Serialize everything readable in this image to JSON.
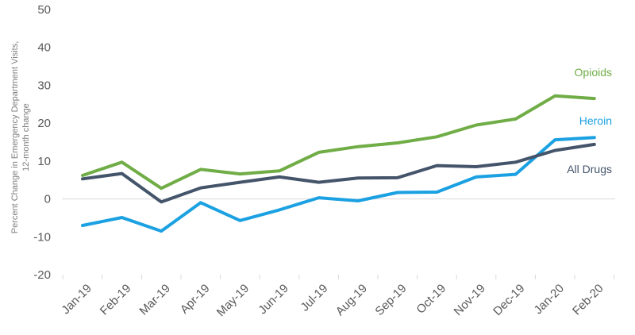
{
  "chart_data": {
    "type": "line",
    "title": "",
    "ylabel_lines": [
      "Percent Change in Emergency Department Visits,",
      "12-month change"
    ],
    "xlabel": "",
    "ylim": [
      -20,
      50
    ],
    "yticks": [
      -20,
      -10,
      0,
      10,
      20,
      30,
      40,
      50
    ],
    "grid": false,
    "legend": "inline labels at right",
    "categories": [
      "Jan-19",
      "Feb-19",
      "Mar-19",
      "Apr-19",
      "May-19",
      "Jun-19",
      "Jul-19",
      "Aug-19",
      "Sep-19",
      "Oct-19",
      "Nov-19",
      "Dec-19",
      "Jan-20",
      "Feb-20"
    ],
    "series": [
      {
        "name": "Opioids",
        "color": "#70ad47",
        "values": [
          6.2,
          9.7,
          2.8,
          7.8,
          6.6,
          7.4,
          12.3,
          13.8,
          14.8,
          16.4,
          19.5,
          21.1,
          27.2,
          26.5
        ]
      },
      {
        "name": "Heroin",
        "color": "#1ba1e2",
        "values": [
          -7.0,
          -4.9,
          -8.5,
          -1.0,
          -5.7,
          -2.9,
          0.3,
          -0.5,
          1.7,
          1.8,
          5.8,
          6.5,
          15.6,
          16.2
        ]
      },
      {
        "name": "All Drugs",
        "color": "#44546a",
        "values": [
          5.3,
          6.7,
          -0.8,
          2.9,
          4.4,
          5.8,
          4.4,
          5.5,
          5.6,
          8.8,
          8.5,
          9.7,
          12.8,
          14.4
        ]
      }
    ]
  }
}
